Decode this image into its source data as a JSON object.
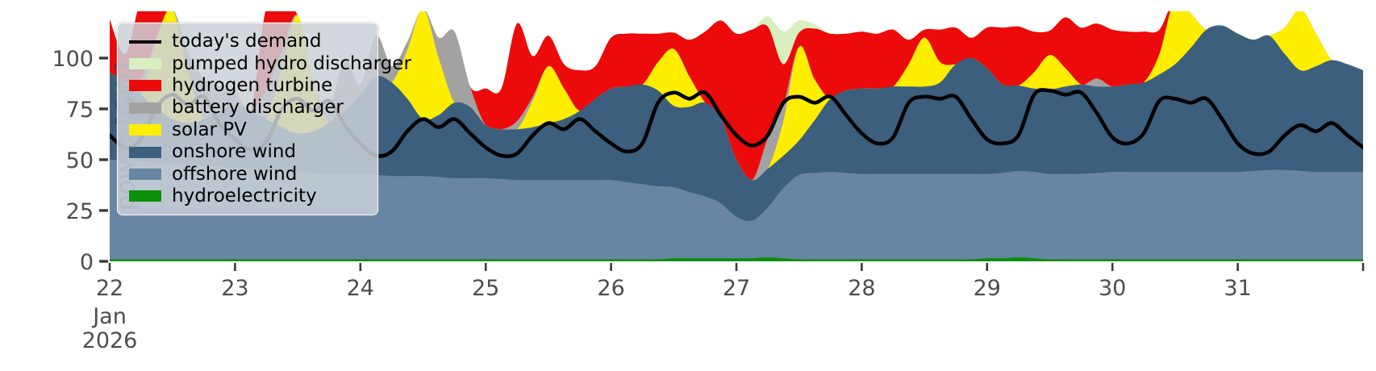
{
  "chart_data": {
    "type": "area",
    "title": "",
    "ylabel": "power [GW]",
    "unit": "GW",
    "grid": false,
    "legend_position": "upper-left",
    "x_start_label": {
      "day": "22",
      "month": "Jan",
      "year": "2026"
    },
    "x_tick_labels": [
      "22",
      "23",
      "24",
      "25",
      "26",
      "27",
      "28",
      "29",
      "30",
      "31",
      ""
    ],
    "step_hours": 3,
    "hours_total": 240,
    "ylim": [
      0,
      123
    ],
    "yticks": [
      0,
      25,
      50,
      75,
      100
    ],
    "axis_color": "#4d4d4d",
    "tick_mark_color": "#3a3a3a",
    "demand_series": {
      "name": "today's demand",
      "color": "#000000",
      "values": [
        62,
        56,
        60,
        76,
        82,
        77,
        81,
        68,
        60,
        55,
        59,
        75,
        80,
        74,
        79,
        67,
        58,
        52,
        54,
        64,
        70,
        66,
        70,
        63,
        56,
        52,
        53,
        62,
        68,
        65,
        70,
        64,
        58,
        54,
        58,
        78,
        83,
        80,
        83,
        72,
        62,
        57,
        62,
        78,
        81,
        78,
        81,
        72,
        63,
        58,
        61,
        78,
        81,
        80,
        81,
        70,
        60,
        58,
        62,
        82,
        84,
        82,
        83,
        73,
        61,
        58,
        63,
        79,
        80,
        78,
        80,
        70,
        58,
        53,
        54,
        62,
        67,
        64,
        68,
        62,
        56
      ]
    },
    "stack_series": [
      {
        "name": "hydroelectricity",
        "color": "#0b8f0b",
        "values": [
          1,
          1,
          1,
          1,
          1,
          1,
          1,
          1,
          1,
          1,
          1,
          1,
          1,
          1,
          1,
          1,
          1,
          1,
          1,
          1,
          1,
          1,
          1,
          1,
          1,
          1,
          1,
          1,
          1,
          1,
          1,
          1,
          1,
          1,
          1,
          1,
          1.5,
          1.5,
          1.5,
          1.5,
          1.5,
          1.5,
          2,
          1.5,
          1,
          1,
          1,
          1,
          1,
          1,
          1,
          1,
          1,
          1,
          1,
          1,
          1.5,
          1.5,
          2,
          1.5,
          1,
          1,
          1,
          1,
          1,
          1,
          1,
          1,
          1,
          1,
          1,
          1,
          1,
          1,
          1,
          1,
          1,
          1,
          1,
          1,
          1
        ]
      },
      {
        "name": "offshore wind",
        "color": "#6885a3",
        "values": [
          49,
          48.5,
          48,
          47.5,
          47,
          46.5,
          46,
          45.5,
          45,
          44.5,
          44,
          43.5,
          43,
          42.5,
          42,
          42,
          42,
          41.5,
          41,
          41,
          41,
          40.5,
          40,
          40,
          40,
          39.5,
          39,
          39,
          39,
          39,
          39,
          39,
          39,
          38,
          37,
          36,
          35,
          32.5,
          30.5,
          27,
          20.5,
          18.5,
          24.5,
          34.5,
          41.5,
          42.5,
          43,
          42.5,
          42,
          42,
          42,
          42,
          42,
          42,
          42,
          42,
          41.5,
          42,
          42.5,
          42.5,
          42,
          42,
          42,
          42.5,
          43,
          43,
          43,
          43,
          43,
          43,
          43,
          43,
          43,
          43.5,
          44,
          44,
          43.5,
          43,
          43,
          43,
          43
        ]
      },
      {
        "name": "onshore wind",
        "color": "#3c5f7d",
        "values": [
          43,
          38.5,
          33,
          26.5,
          22,
          20.5,
          23,
          27.5,
          31,
          28.5,
          25,
          21.5,
          19,
          20.5,
          25,
          31,
          39,
          48.5,
          46,
          38,
          28,
          30.5,
          37,
          35,
          26,
          24.5,
          25,
          26,
          28,
          30,
          34,
          40,
          45,
          47,
          49,
          47,
          40,
          42,
          46,
          42,
          28,
          20,
          19,
          16,
          17,
          26,
          36,
          40.5,
          42,
          42,
          43,
          43,
          43,
          45,
          54,
          57,
          52,
          43.5,
          42,
          41,
          41.5,
          43,
          44,
          42.5,
          42,
          43,
          44,
          48,
          53,
          61,
          70,
          72,
          68,
          64.5,
          66,
          57,
          49.5,
          52,
          55,
          53,
          50
        ]
      },
      {
        "name": "solar PV",
        "color": "#ffee00",
        "values": [
          0,
          0,
          0,
          35,
          54,
          25,
          0,
          0,
          0,
          0,
          0,
          30,
          58,
          24,
          0,
          0,
          0,
          0,
          0,
          24,
          54,
          28,
          0,
          0,
          0,
          0,
          0,
          13,
          28,
          15,
          0,
          0,
          0,
          0,
          0,
          14,
          28,
          15,
          0,
          0,
          0,
          0,
          0,
          17,
          46,
          20,
          0,
          0,
          0,
          0,
          0,
          11,
          24,
          10,
          0,
          0,
          0,
          0,
          0,
          8,
          17,
          9,
          0,
          0,
          0,
          0,
          0,
          10,
          32,
          17,
          0,
          0,
          0,
          0,
          0,
          13,
          30,
          16,
          0,
          0,
          0
        ]
      },
      {
        "name": "battery discharger",
        "color": "#a2a2a2",
        "values": [
          0,
          0,
          8,
          0,
          0,
          10,
          20,
          12,
          6,
          0,
          15,
          8,
          0,
          0,
          8,
          25,
          5,
          20,
          8,
          4,
          0,
          10,
          35,
          10,
          0,
          0,
          4,
          2,
          0,
          0,
          0,
          0,
          0,
          0,
          0,
          0,
          0,
          0,
          0,
          0,
          0,
          0,
          15,
          8,
          0,
          0,
          0,
          0,
          0,
          0,
          0,
          0,
          0,
          0,
          0,
          0,
          0,
          0,
          0,
          0,
          0,
          0,
          0,
          4,
          0,
          0,
          0,
          0,
          0,
          0,
          0,
          0,
          0,
          0,
          0,
          0,
          0,
          0,
          0,
          0,
          0
        ]
      },
      {
        "name": "hydrogen turbine",
        "color": "#ed0a0a",
        "values": [
          26,
          14,
          38,
          15,
          0,
          0,
          0,
          0,
          0,
          0,
          40,
          20,
          0,
          0,
          0,
          0,
          0,
          0,
          0,
          0,
          0,
          0,
          0,
          0,
          18,
          20,
          48,
          20,
          15,
          12,
          20,
          16,
          25,
          26,
          25,
          14,
          8,
          18,
          35,
          48,
          62,
          74,
          55,
          20,
          7,
          25,
          32,
          28,
          28,
          27,
          28,
          12,
          4,
          16,
          18,
          10,
          20,
          28,
          29,
          20,
          12,
          25,
          28,
          27,
          28,
          26,
          25,
          12,
          0,
          0,
          0,
          0,
          0,
          0,
          0,
          0,
          0,
          0,
          0,
          0,
          0
        ]
      },
      {
        "name": "pumped hydro discharger",
        "color": "#d8efc0",
        "values": [
          0,
          0,
          0,
          0,
          0,
          0,
          0,
          0,
          3,
          0,
          0,
          0,
          0,
          0,
          0,
          0,
          0,
          0,
          0,
          0,
          0,
          0,
          0,
          0,
          0,
          0,
          0,
          0,
          0,
          0,
          0,
          0,
          0,
          0,
          0,
          0,
          0,
          0,
          0,
          0,
          0,
          0,
          5,
          16,
          6,
          2,
          0,
          0,
          0,
          0,
          0,
          0,
          0,
          0,
          0,
          0,
          0,
          0,
          0,
          0,
          0,
          0,
          0,
          0,
          0,
          0,
          0,
          0,
          0,
          0,
          0,
          0,
          0,
          0,
          0,
          0,
          0,
          0,
          0,
          0,
          0
        ]
      }
    ]
  },
  "legend": {
    "items": [
      {
        "label": "today's demand",
        "color": "#000000",
        "swatch": "line"
      },
      {
        "label": "pumped hydro discharger",
        "color": "#d8efc0",
        "swatch": "rect"
      },
      {
        "label": "hydrogen turbine",
        "color": "#ed0a0a",
        "swatch": "rect"
      },
      {
        "label": "battery discharger",
        "color": "#a2a2a2",
        "swatch": "rect"
      },
      {
        "label": "solar PV",
        "color": "#ffee00",
        "swatch": "rect"
      },
      {
        "label": "onshore wind",
        "color": "#3c5f7d",
        "swatch": "rect"
      },
      {
        "label": "offshore wind",
        "color": "#6885a3",
        "swatch": "rect"
      },
      {
        "label": "hydroelectricity",
        "color": "#0b8f0b",
        "swatch": "rect"
      }
    ]
  }
}
